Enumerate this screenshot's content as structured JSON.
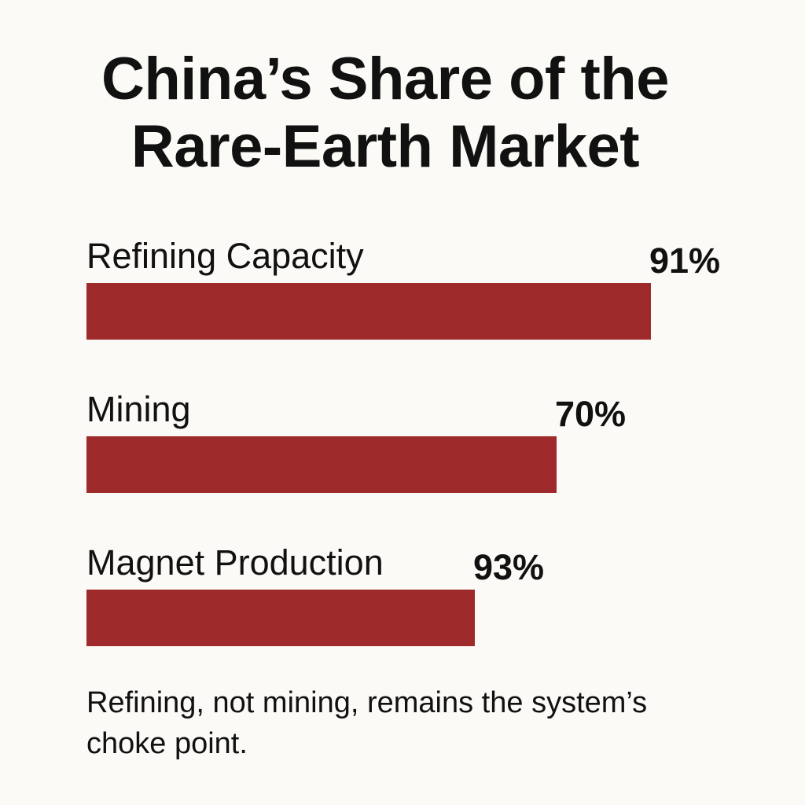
{
  "chart_data": {
    "type": "bar",
    "orientation": "horizontal",
    "title": "China’s Share of the Rare-Earth Market",
    "title_lines": [
      "China’s Share of the",
      "Rare-Earth Market"
    ],
    "categories": [
      "Refining Capacity",
      "Mining",
      "Magnet Production"
    ],
    "values": [
      91,
      70,
      93
    ],
    "value_labels": [
      "91%",
      "70%",
      "93%"
    ],
    "unit": "%",
    "xlabel": "",
    "ylabel": "",
    "grid": false,
    "legend": "none",
    "bar_color": "#9e2a2b",
    "annotation": "Refining, not mining, remains the system’s choke point."
  },
  "colors": {
    "background": "#fcfaf6",
    "text": "#111111",
    "bar": "#9e2a2b"
  }
}
